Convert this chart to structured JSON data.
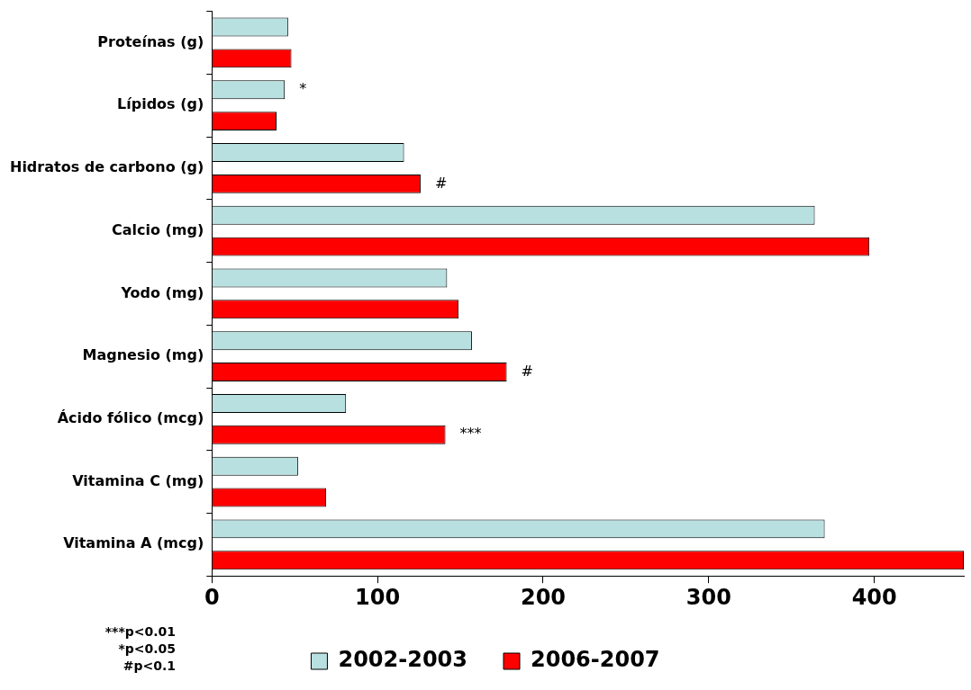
{
  "chart_data": {
    "type": "bar",
    "orientation": "horizontal",
    "categories": [
      "Proteínas (g)",
      "Lípidos (g)",
      "Hidratos de carbono (g)",
      "Calcio (mg)",
      "Yodo (mg)",
      "Magnesio (mg)",
      "Ácido fólico (mcg)",
      "Vitamina C (mg)",
      "Vitamina A (mcg)"
    ],
    "series": [
      {
        "name": "2002-2003",
        "color": "#b8e0e0",
        "values": [
          46,
          44,
          116,
          364,
          142,
          157,
          81,
          52,
          370
        ],
        "value_labels": [
          null,
          "*",
          null,
          null,
          null,
          null,
          null,
          null,
          null
        ]
      },
      {
        "name": "2006-2007",
        "color": "#ff0000",
        "values": [
          48,
          39,
          126,
          397,
          149,
          178,
          141,
          69,
          454
        ],
        "value_labels": [
          null,
          null,
          "#",
          null,
          null,
          "#",
          "***",
          null,
          null
        ]
      }
    ],
    "xlim": [
      0,
      454
    ],
    "xticks": [
      0,
      100,
      200,
      300,
      400
    ],
    "legend": "bottom",
    "annotations": [
      "***p<0.01",
      "*p<0.05",
      "#p<0.1"
    ]
  }
}
